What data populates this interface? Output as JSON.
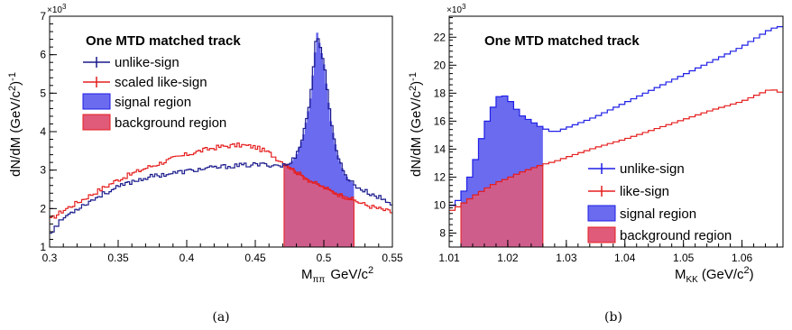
{
  "colors": {
    "unlike": "#1e1ee6",
    "unlike_dark": "#1a1a8c",
    "like": "#e61e1e",
    "signal_fill": "#6b6bf0",
    "background_fill": "#e05a7a",
    "axis": "#000000"
  },
  "captions": {
    "a": "(a)",
    "b": "(b)"
  },
  "chart_data": [
    {
      "type": "line",
      "panel": "a",
      "title": "One MTD matched track",
      "xlabel_main": "M",
      "xlabel_sub": "ππ",
      "xlabel_unit": "GeV/c",
      "xlabel_unit_sup": "2",
      "ylabel": "dN/dM (GeV/c",
      "ylabel_sup": "2",
      "ylabel_close": ")",
      "ylabel_exp": "-1",
      "y_multiplier": "×10",
      "y_multiplier_exp": "3",
      "xlim": [
        0.3,
        0.55
      ],
      "ylim": [
        1,
        7
      ],
      "xticks": [
        "0.3",
        "0.35",
        "0.4",
        "0.45",
        "0.5",
        "0.55"
      ],
      "yticks": [
        "1",
        "2",
        "3",
        "4",
        "5",
        "6",
        "7"
      ],
      "legend": [
        "unlike-sign",
        "scaled like-sign",
        "signal region",
        "background region"
      ],
      "signal_region": [
        0.471,
        0.522
      ],
      "series": [
        {
          "name": "unlike-sign",
          "x": [
            0.3,
            0.31,
            0.32,
            0.33,
            0.34,
            0.35,
            0.36,
            0.37,
            0.38,
            0.39,
            0.4,
            0.41,
            0.42,
            0.43,
            0.44,
            0.45,
            0.46,
            0.47,
            0.475,
            0.48,
            0.485,
            0.49,
            0.495,
            0.5,
            0.505,
            0.51,
            0.515,
            0.52,
            0.525,
            0.53,
            0.54,
            0.55
          ],
          "values": [
            1.35,
            1.75,
            2.0,
            2.2,
            2.4,
            2.55,
            2.7,
            2.8,
            2.87,
            2.92,
            2.97,
            3.02,
            3.06,
            3.1,
            3.12,
            3.14,
            3.14,
            3.12,
            3.15,
            3.4,
            3.9,
            4.8,
            6.6,
            5.8,
            4.3,
            3.4,
            2.9,
            2.7,
            2.55,
            2.45,
            2.3,
            2.1
          ]
        },
        {
          "name": "scaled like-sign",
          "x": [
            0.3,
            0.31,
            0.32,
            0.33,
            0.34,
            0.35,
            0.36,
            0.37,
            0.38,
            0.39,
            0.4,
            0.41,
            0.42,
            0.43,
            0.44,
            0.45,
            0.46,
            0.47,
            0.48,
            0.49,
            0.5,
            0.51,
            0.52,
            0.53,
            0.54,
            0.55
          ],
          "values": [
            1.7,
            1.95,
            2.15,
            2.35,
            2.55,
            2.75,
            2.9,
            3.05,
            3.17,
            3.3,
            3.4,
            3.5,
            3.58,
            3.63,
            3.65,
            3.6,
            3.45,
            3.2,
            2.95,
            2.72,
            2.55,
            2.38,
            2.25,
            2.1,
            2.0,
            1.9
          ]
        }
      ]
    },
    {
      "type": "line",
      "panel": "b",
      "title": "One MTD matched track",
      "xlabel_main": "M",
      "xlabel_sub": "KK",
      "xlabel_unit": "(GeV/c",
      "xlabel_unit_sup": "2",
      "xlabel_close": ")",
      "ylabel": "dN/dM (GeV/c",
      "ylabel_sup": "2",
      "ylabel_close": ")",
      "ylabel_exp": "-1",
      "y_multiplier": "×10",
      "y_multiplier_exp": "3",
      "xlim": [
        1.01,
        1.067
      ],
      "ylim": [
        7,
        23.5
      ],
      "xticks": [
        "1.01",
        "1.02",
        "1.03",
        "1.04",
        "1.05",
        "1.06"
      ],
      "yticks": [
        "8",
        "10",
        "12",
        "14",
        "16",
        "18",
        "20",
        "22"
      ],
      "legend": [
        "unlike-sign",
        "like-sign",
        "signal region",
        "background region"
      ],
      "signal_region": [
        1.012,
        1.026
      ],
      "series": [
        {
          "name": "unlike-sign",
          "x": [
            1.01,
            1.012,
            1.014,
            1.016,
            1.018,
            1.019,
            1.02,
            1.021,
            1.022,
            1.024,
            1.026,
            1.028,
            1.03,
            1.035,
            1.04,
            1.045,
            1.05,
            1.055,
            1.06,
            1.065,
            1.067
          ],
          "values": [
            9.8,
            10.5,
            12.5,
            15.5,
            17.5,
            18.0,
            17.6,
            17.2,
            16.5,
            16.0,
            15.5,
            15.2,
            15.5,
            16.3,
            17.3,
            18.3,
            19.3,
            20.3,
            21.3,
            22.6,
            22.8
          ]
        },
        {
          "name": "like-sign",
          "x": [
            1.01,
            1.012,
            1.014,
            1.016,
            1.018,
            1.02,
            1.022,
            1.024,
            1.026,
            1.028,
            1.03,
            1.035,
            1.04,
            1.045,
            1.05,
            1.055,
            1.06,
            1.065,
            1.067
          ],
          "values": [
            9.5,
            10.0,
            10.6,
            11.1,
            11.6,
            11.9,
            12.3,
            12.6,
            12.9,
            13.1,
            13.4,
            14.1,
            14.7,
            15.4,
            16.1,
            16.8,
            17.4,
            18.3,
            18.0
          ]
        }
      ]
    }
  ]
}
